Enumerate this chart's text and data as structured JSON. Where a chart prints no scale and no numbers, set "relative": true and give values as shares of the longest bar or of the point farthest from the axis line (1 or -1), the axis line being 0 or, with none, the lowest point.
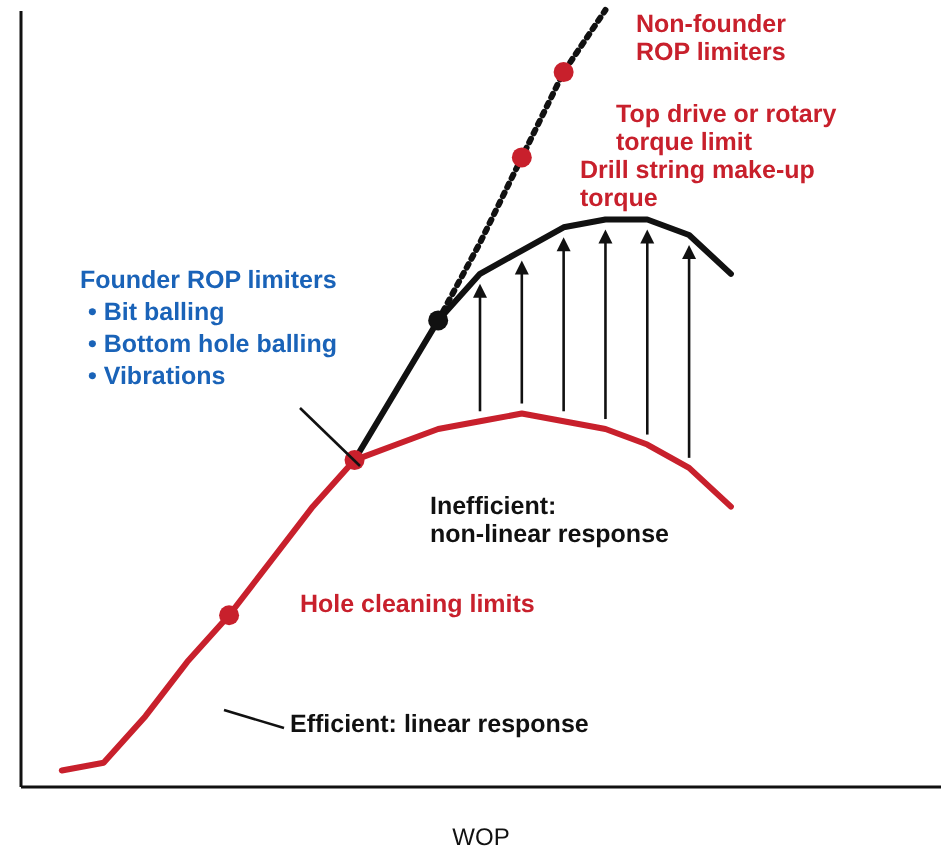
{
  "chart_data": {
    "type": "line",
    "relative": true,
    "xlabel": "WOP",
    "grid": false,
    "categories": [
      null,
      null,
      null,
      null,
      null,
      null,
      null,
      null,
      null,
      null,
      null,
      null,
      null,
      null,
      null,
      null,
      null,
      null,
      null,
      null,
      null
    ],
    "series": [
      {
        "color": "#c8202c",
        "values": [
          0.02,
          0.03,
          0.09,
          0.16,
          0.22,
          0.29,
          0.36,
          0.42,
          0.44,
          0.46,
          0.47,
          0.48,
          0.47,
          0.46,
          0.44,
          0.41,
          0.36,
          null,
          null,
          null,
          null
        ]
      },
      {
        "color": "#111111",
        "values": [
          null,
          null,
          null,
          null,
          null,
          null,
          null,
          0.42,
          0.51,
          0.6,
          0.66,
          0.69,
          0.72,
          0.73,
          0.73,
          0.71,
          0.66,
          null,
          null,
          null,
          null
        ]
      },
      {
        "color": "#111111",
        "line_style": "dotted",
        "values": [
          null,
          null,
          null,
          null,
          null,
          null,
          null,
          null,
          null,
          0.6,
          0.7,
          0.81,
          0.92,
          1.0,
          null,
          null,
          null,
          null,
          null,
          null,
          null
        ]
      }
    ],
    "annotations": [
      "Non-founder ROP limiters",
      "Top drive or rotary torque limit",
      "Drill string make-up torque",
      "Founder ROP limiters",
      "• Bit balling",
      "• Bottom hole balling",
      "• Vibrations",
      "Hole cleaning limits",
      "Inefficient: non-linear response",
      "Efficient: linear response"
    ]
  }
}
